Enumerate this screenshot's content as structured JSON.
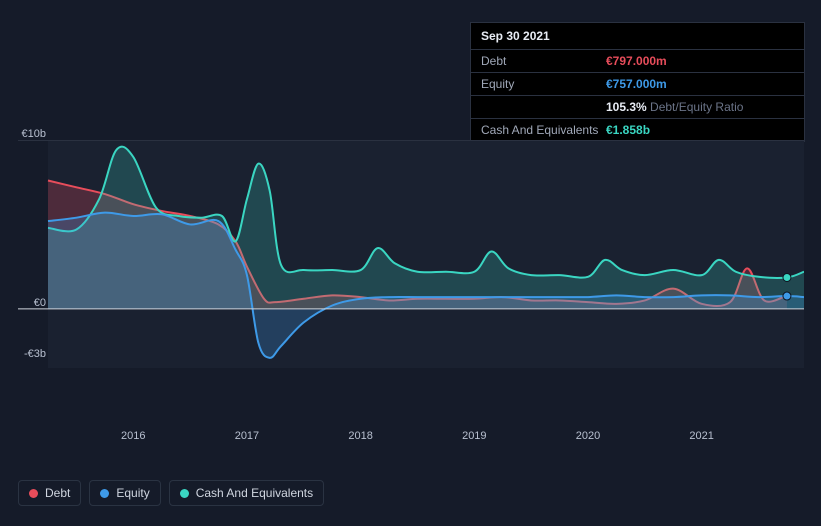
{
  "chart": {
    "type": "area-line",
    "background_color": "#151b29",
    "plot_background_color": "#1a2130",
    "grid_color": "#2a3140",
    "zero_line_color": "#d0d5dd",
    "text_color": "#b8c0d0",
    "label_fontsize": 11,
    "y_axis": {
      "ticks": [
        {
          "label": "€10b",
          "value": 10
        },
        {
          "label": "€0",
          "value": 0
        },
        {
          "label": "-€3b",
          "value": -3
        }
      ],
      "min": -3.5,
      "max": 10
    },
    "x_axis": {
      "ticks": [
        "2016",
        "2017",
        "2018",
        "2019",
        "2020",
        "2021"
      ],
      "min": 2015.25,
      "max": 2021.9
    },
    "series": {
      "debt": {
        "label": "Debt",
        "color": "#e84d5b",
        "fill_opacity": 0.25,
        "line_width": 2,
        "points": [
          [
            2015.25,
            7.6
          ],
          [
            2015.5,
            7.2
          ],
          [
            2015.75,
            6.8
          ],
          [
            2016.0,
            6.2
          ],
          [
            2016.25,
            5.8
          ],
          [
            2016.5,
            5.5
          ],
          [
            2016.75,
            5.0
          ],
          [
            2016.9,
            4.0
          ],
          [
            2017.0,
            2.5
          ],
          [
            2017.15,
            0.6
          ],
          [
            2017.25,
            0.4
          ],
          [
            2017.5,
            0.6
          ],
          [
            2017.75,
            0.8
          ],
          [
            2018.0,
            0.7
          ],
          [
            2018.25,
            0.5
          ],
          [
            2018.5,
            0.6
          ],
          [
            2018.75,
            0.6
          ],
          [
            2019.0,
            0.6
          ],
          [
            2019.25,
            0.7
          ],
          [
            2019.5,
            0.5
          ],
          [
            2019.75,
            0.5
          ],
          [
            2020.0,
            0.4
          ],
          [
            2020.25,
            0.3
          ],
          [
            2020.5,
            0.5
          ],
          [
            2020.75,
            1.2
          ],
          [
            2021.0,
            0.3
          ],
          [
            2021.25,
            0.4
          ],
          [
            2021.4,
            2.4
          ],
          [
            2021.55,
            0.5
          ],
          [
            2021.75,
            0.8
          ]
        ]
      },
      "equity": {
        "label": "Equity",
        "color": "#3e9ae8",
        "fill_opacity": 0.25,
        "line_width": 2,
        "points": [
          [
            2015.25,
            5.2
          ],
          [
            2015.5,
            5.4
          ],
          [
            2015.75,
            5.7
          ],
          [
            2016.0,
            5.5
          ],
          [
            2016.25,
            5.6
          ],
          [
            2016.5,
            5.0
          ],
          [
            2016.75,
            5.2
          ],
          [
            2016.9,
            3.5
          ],
          [
            2017.0,
            2.0
          ],
          [
            2017.1,
            -2.0
          ],
          [
            2017.2,
            -2.9
          ],
          [
            2017.3,
            -2.2
          ],
          [
            2017.5,
            -0.8
          ],
          [
            2017.75,
            0.2
          ],
          [
            2018.0,
            0.6
          ],
          [
            2018.25,
            0.7
          ],
          [
            2018.5,
            0.7
          ],
          [
            2018.75,
            0.7
          ],
          [
            2019.0,
            0.7
          ],
          [
            2019.25,
            0.7
          ],
          [
            2019.5,
            0.7
          ],
          [
            2019.75,
            0.7
          ],
          [
            2020.0,
            0.7
          ],
          [
            2020.25,
            0.8
          ],
          [
            2020.5,
            0.7
          ],
          [
            2020.75,
            0.7
          ],
          [
            2021.0,
            0.8
          ],
          [
            2021.25,
            0.8
          ],
          [
            2021.5,
            0.7
          ],
          [
            2021.75,
            0.76
          ],
          [
            2021.9,
            0.7
          ]
        ]
      },
      "cash": {
        "label": "Cash And Equivalents",
        "color": "#3ad6c2",
        "fill_opacity": 0.22,
        "line_width": 2,
        "points": [
          [
            2015.25,
            4.8
          ],
          [
            2015.5,
            4.7
          ],
          [
            2015.7,
            6.5
          ],
          [
            2015.85,
            9.4
          ],
          [
            2016.0,
            9.0
          ],
          [
            2016.2,
            6.0
          ],
          [
            2016.4,
            5.5
          ],
          [
            2016.6,
            5.4
          ],
          [
            2016.78,
            5.5
          ],
          [
            2016.9,
            4.0
          ],
          [
            2017.0,
            6.5
          ],
          [
            2017.1,
            8.6
          ],
          [
            2017.2,
            7.0
          ],
          [
            2017.3,
            2.6
          ],
          [
            2017.5,
            2.3
          ],
          [
            2017.75,
            2.3
          ],
          [
            2018.0,
            2.3
          ],
          [
            2018.15,
            3.6
          ],
          [
            2018.3,
            2.7
          ],
          [
            2018.5,
            2.2
          ],
          [
            2018.75,
            2.2
          ],
          [
            2019.0,
            2.2
          ],
          [
            2019.15,
            3.4
          ],
          [
            2019.3,
            2.4
          ],
          [
            2019.5,
            2.0
          ],
          [
            2019.75,
            2.0
          ],
          [
            2020.0,
            1.9
          ],
          [
            2020.15,
            2.9
          ],
          [
            2020.3,
            2.3
          ],
          [
            2020.5,
            2.0
          ],
          [
            2020.75,
            2.3
          ],
          [
            2021.0,
            2.0
          ],
          [
            2021.15,
            2.9
          ],
          [
            2021.3,
            2.2
          ],
          [
            2021.5,
            1.9
          ],
          [
            2021.75,
            1.86
          ],
          [
            2021.9,
            2.2
          ]
        ]
      }
    },
    "hover_marker": {
      "x": 2021.75,
      "radius": 4
    }
  },
  "tooltip": {
    "date": "Sep 30 2021",
    "rows": [
      {
        "key": "Debt",
        "value": "€797.000m",
        "color": "#e84d5b"
      },
      {
        "key": "Equity",
        "value": "€757.000m",
        "color": "#3e9ae8"
      },
      {
        "key": "",
        "value_primary": "105.3%",
        "value_secondary": "Debt/Equity Ratio",
        "color_primary": "#e8ecf4",
        "color_secondary": "#6b7488"
      },
      {
        "key": "Cash And Equivalents",
        "value": "€1.858b",
        "color": "#3ad6c2"
      }
    ]
  },
  "legend": {
    "items": [
      {
        "label": "Debt",
        "color": "#e84d5b"
      },
      {
        "label": "Equity",
        "color": "#3e9ae8"
      },
      {
        "label": "Cash And Equivalents",
        "color": "#3ad6c2"
      }
    ]
  }
}
